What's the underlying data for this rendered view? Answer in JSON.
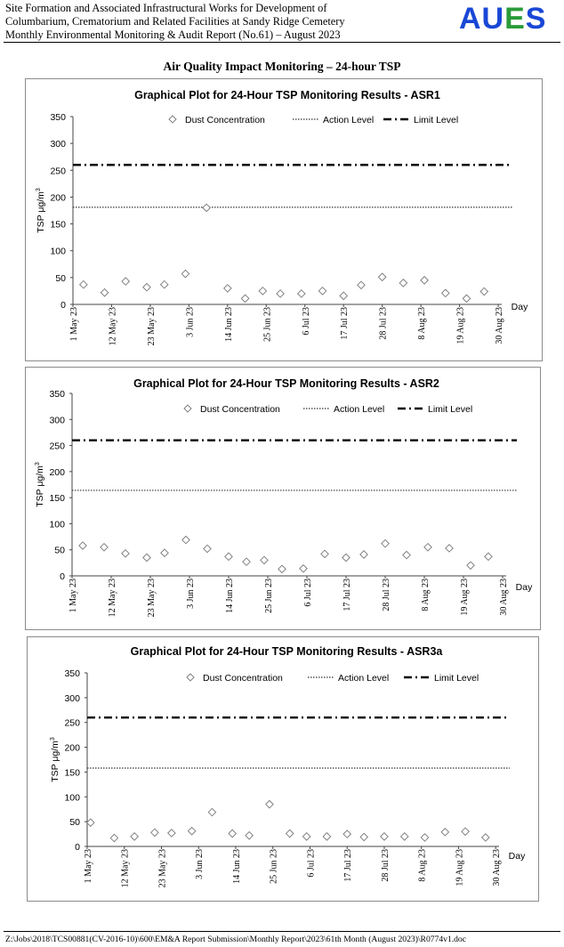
{
  "header": {
    "line1": "Site Formation and Associated Infrastructural Works for Development of",
    "line2": "Columbarium, Crematorium and Related Facilities at Sandy Ridge Cemetery",
    "line3": "Monthly Environmental Monitoring & Audit Report (No.61) – August 2023",
    "logo_text_a": "AU",
    "logo_text_b": "E",
    "logo_text_c": "S"
  },
  "section_title": "Air Quality Impact Monitoring – 24-hour TSP",
  "footer": "Z:\\Jobs\\2018\\TCS00881(CV-2016-10)\\600\\EM&A Report Submission\\Monthly Report\\2023\\61th Month (August 2023)\\R0774v1.doc",
  "colors": {
    "logo_blue": "#1947d6",
    "logo_green": "#2a9b3a",
    "frame": "#8c8c8c",
    "marker": "#777777"
  },
  "chart_data": [
    {
      "type": "scatter",
      "title": "Graphical Plot for 24-Hour TSP Monitoring Results - ASR1",
      "xlabel": "Day",
      "ylabel_main": "TSP μg/m",
      "ylabel_sup": "3",
      "ylim": [
        0,
        350
      ],
      "yticks": [
        "0",
        "50",
        "100",
        "150",
        "200",
        "250",
        "300",
        "350"
      ],
      "xlim": [
        "2023-05-01",
        "2023-08-31"
      ],
      "xticks": [
        {
          "date": "2023-05-01",
          "label": "1 May 23"
        },
        {
          "date": "2023-05-12",
          "label": "12 May 23"
        },
        {
          "date": "2023-05-23",
          "label": "23 May 23"
        },
        {
          "date": "2023-06-03",
          "label": "3 Jun 23"
        },
        {
          "date": "2023-06-14",
          "label": "14 Jun 23"
        },
        {
          "date": "2023-06-25",
          "label": "25 Jun 23"
        },
        {
          "date": "2023-07-06",
          "label": "6 Jul 23"
        },
        {
          "date": "2023-07-17",
          "label": "17 Jul 23"
        },
        {
          "date": "2023-07-28",
          "label": "28 Jul 23"
        },
        {
          "date": "2023-08-08",
          "label": "8 Aug 23"
        },
        {
          "date": "2023-08-19",
          "label": "19 Aug 23"
        },
        {
          "date": "2023-08-30",
          "label": "30 Aug 23"
        }
      ],
      "legend": [
        "Dust Concentration",
        "Action Level",
        "Limit Level"
      ],
      "action_level": 181,
      "limit_level": 260,
      "series": [
        {
          "name": "Dust Concentration",
          "points": [
            {
              "x": "2023-05-04",
              "y": 37
            },
            {
              "x": "2023-05-10",
              "y": 22
            },
            {
              "x": "2023-05-16",
              "y": 43
            },
            {
              "x": "2023-05-22",
              "y": 32
            },
            {
              "x": "2023-05-27",
              "y": 37
            },
            {
              "x": "2023-06-02",
              "y": 57
            },
            {
              "x": "2023-06-08",
              "y": 180
            },
            {
              "x": "2023-06-14",
              "y": 30
            },
            {
              "x": "2023-06-19",
              "y": 11
            },
            {
              "x": "2023-06-24",
              "y": 25
            },
            {
              "x": "2023-06-29",
              "y": 20
            },
            {
              "x": "2023-07-05",
              "y": 20
            },
            {
              "x": "2023-07-11",
              "y": 25
            },
            {
              "x": "2023-07-17",
              "y": 16
            },
            {
              "x": "2023-07-22",
              "y": 36
            },
            {
              "x": "2023-07-28",
              "y": 51
            },
            {
              "x": "2023-08-03",
              "y": 40
            },
            {
              "x": "2023-08-09",
              "y": 45
            },
            {
              "x": "2023-08-15",
              "y": 21
            },
            {
              "x": "2023-08-21",
              "y": 11
            },
            {
              "x": "2023-08-26",
              "y": 24
            }
          ]
        }
      ]
    },
    {
      "type": "scatter",
      "title": "Graphical Plot for 24-Hour TSP Monitoring Results - ASR2",
      "xlabel": "Day",
      "ylabel_main": "TSP μg/m",
      "ylabel_sup": "3",
      "ylim": [
        0,
        350
      ],
      "yticks": [
        "0",
        "50",
        "100",
        "150",
        "200",
        "250",
        "300",
        "350"
      ],
      "xlim": [
        "2023-05-01",
        "2023-08-31"
      ],
      "xticks": [
        {
          "date": "2023-05-01",
          "label": "1 May 23"
        },
        {
          "date": "2023-05-12",
          "label": "12 May 23"
        },
        {
          "date": "2023-05-23",
          "label": "23 May 23"
        },
        {
          "date": "2023-06-03",
          "label": "3 Jun 23"
        },
        {
          "date": "2023-06-14",
          "label": "14 Jun 23"
        },
        {
          "date": "2023-06-25",
          "label": "25 Jun 23"
        },
        {
          "date": "2023-07-06",
          "label": "6 Jul 23"
        },
        {
          "date": "2023-07-17",
          "label": "17 Jul 23"
        },
        {
          "date": "2023-07-28",
          "label": "28 Jul 23"
        },
        {
          "date": "2023-08-08",
          "label": "8 Aug 23"
        },
        {
          "date": "2023-08-19",
          "label": "19 Aug 23"
        },
        {
          "date": "2023-08-30",
          "label": "30 Aug 23"
        }
      ],
      "legend": [
        "Dust Concentration",
        "Action Level",
        "Limit Level"
      ],
      "action_level": 164,
      "limit_level": 260,
      "series": [
        {
          "name": "Dust Concentration",
          "points": [
            {
              "x": "2023-05-04",
              "y": 58
            },
            {
              "x": "2023-05-10",
              "y": 55
            },
            {
              "x": "2023-05-16",
              "y": 43
            },
            {
              "x": "2023-05-22",
              "y": 35
            },
            {
              "x": "2023-05-27",
              "y": 44
            },
            {
              "x": "2023-06-02",
              "y": 69
            },
            {
              "x": "2023-06-08",
              "y": 52
            },
            {
              "x": "2023-06-14",
              "y": 37
            },
            {
              "x": "2023-06-19",
              "y": 27
            },
            {
              "x": "2023-06-24",
              "y": 30
            },
            {
              "x": "2023-06-29",
              "y": 13
            },
            {
              "x": "2023-07-05",
              "y": 14
            },
            {
              "x": "2023-07-11",
              "y": 42
            },
            {
              "x": "2023-07-17",
              "y": 35
            },
            {
              "x": "2023-07-22",
              "y": 41
            },
            {
              "x": "2023-07-28",
              "y": 62
            },
            {
              "x": "2023-08-03",
              "y": 40
            },
            {
              "x": "2023-08-09",
              "y": 55
            },
            {
              "x": "2023-08-15",
              "y": 53
            },
            {
              "x": "2023-08-21",
              "y": 20
            },
            {
              "x": "2023-08-26",
              "y": 37
            }
          ]
        }
      ]
    },
    {
      "type": "scatter",
      "title": "Graphical Plot for 24-Hour TSP Monitoring Results - ASR3a",
      "xlabel": "Day",
      "ylabel_main": "TSP μg/m",
      "ylabel_sup": "3",
      "ylim": [
        0,
        350
      ],
      "yticks": [
        "0",
        "50",
        "100",
        "150",
        "200",
        "250",
        "300",
        "350"
      ],
      "xlim": [
        "2023-05-01",
        "2023-08-31"
      ],
      "xticks": [
        {
          "date": "2023-05-01",
          "label": "1 May 23"
        },
        {
          "date": "2023-05-12",
          "label": "12 May 23"
        },
        {
          "date": "2023-05-23",
          "label": "23 May 23"
        },
        {
          "date": "2023-06-03",
          "label": "3 Jun 23"
        },
        {
          "date": "2023-06-14",
          "label": "14 Jun 23"
        },
        {
          "date": "2023-06-25",
          "label": "25 Jun 23"
        },
        {
          "date": "2023-07-06",
          "label": "6 Jul 23"
        },
        {
          "date": "2023-07-17",
          "label": "17 Jul 23"
        },
        {
          "date": "2023-07-28",
          "label": "28 Jul 23"
        },
        {
          "date": "2023-08-08",
          "label": "8 Aug 23"
        },
        {
          "date": "2023-08-19",
          "label": "19 Aug 23"
        },
        {
          "date": "2023-08-30",
          "label": "30 Aug 23"
        }
      ],
      "legend": [
        "Dust Concentration",
        "Action Level",
        "Limit Level"
      ],
      "action_level": 158,
      "limit_level": 260,
      "series": [
        {
          "name": "Dust Concentration",
          "points": [
            {
              "x": "2023-05-02",
              "y": 48
            },
            {
              "x": "2023-05-09",
              "y": 17
            },
            {
              "x": "2023-05-15",
              "y": 20
            },
            {
              "x": "2023-05-21",
              "y": 28
            },
            {
              "x": "2023-05-26",
              "y": 27
            },
            {
              "x": "2023-06-01",
              "y": 31
            },
            {
              "x": "2023-06-07",
              "y": 69
            },
            {
              "x": "2023-06-13",
              "y": 26
            },
            {
              "x": "2023-06-18",
              "y": 22
            },
            {
              "x": "2023-06-24",
              "y": 85
            },
            {
              "x": "2023-06-30",
              "y": 26
            },
            {
              "x": "2023-07-05",
              "y": 20
            },
            {
              "x": "2023-07-11",
              "y": 20
            },
            {
              "x": "2023-07-17",
              "y": 25
            },
            {
              "x": "2023-07-22",
              "y": 19
            },
            {
              "x": "2023-07-28",
              "y": 20
            },
            {
              "x": "2023-08-03",
              "y": 20
            },
            {
              "x": "2023-08-09",
              "y": 18
            },
            {
              "x": "2023-08-15",
              "y": 29
            },
            {
              "x": "2023-08-21",
              "y": 30
            },
            {
              "x": "2023-08-27",
              "y": 18
            }
          ]
        }
      ]
    }
  ]
}
